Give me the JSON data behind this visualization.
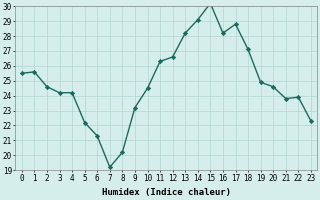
{
  "x": [
    0,
    1,
    2,
    3,
    4,
    5,
    6,
    7,
    8,
    9,
    10,
    11,
    12,
    13,
    14,
    15,
    16,
    17,
    18,
    19,
    20,
    21,
    22,
    23
  ],
  "y": [
    25.5,
    25.6,
    24.6,
    24.2,
    24.2,
    22.2,
    21.3,
    19.2,
    20.2,
    23.2,
    24.5,
    26.3,
    26.6,
    28.2,
    29.1,
    30.2,
    28.2,
    28.8,
    27.1,
    24.9,
    24.6,
    23.8,
    23.9,
    22.3
  ],
  "line_color": "#1a6b5e",
  "marker": "D",
  "marker_size": 2.2,
  "background_color": "#d5eeec",
  "grid_color": "#b8d8d6",
  "xlabel": "Humidex (Indice chaleur)",
  "ylim": [
    19,
    30
  ],
  "xlim": [
    -0.5,
    23.5
  ],
  "yticks": [
    19,
    20,
    21,
    22,
    23,
    24,
    25,
    26,
    27,
    28,
    29,
    30
  ],
  "xticks": [
    0,
    1,
    2,
    3,
    4,
    5,
    6,
    7,
    8,
    9,
    10,
    11,
    12,
    13,
    14,
    15,
    16,
    17,
    18,
    19,
    20,
    21,
    22,
    23
  ],
  "xlabel_fontsize": 6.5,
  "tick_fontsize": 5.5,
  "linewidth": 1.0
}
